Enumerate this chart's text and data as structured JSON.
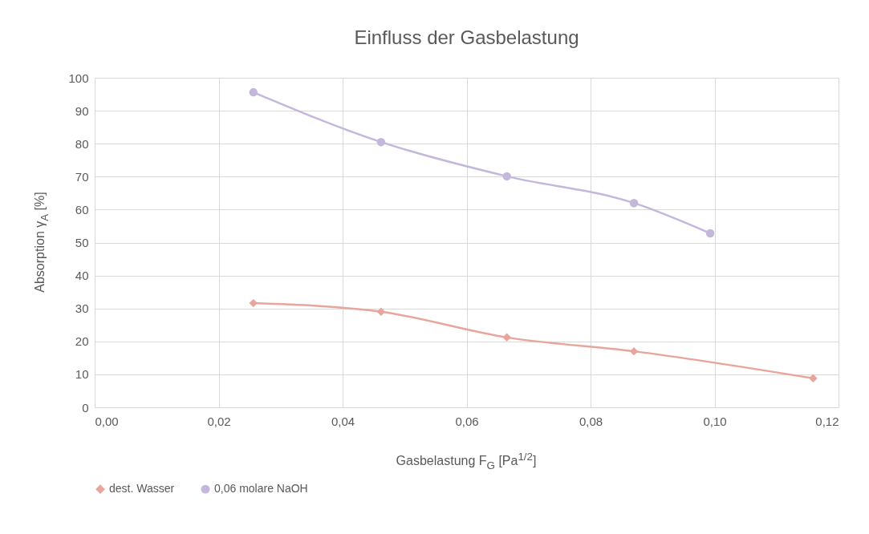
{
  "chart_data": {
    "type": "line",
    "title": "Einfluss der Gasbelastung",
    "xlabel": "Gasbelastung F$_{G}$ [Pa$^{1/2}$]",
    "ylabel": "Absorption γ$_{A}$ [%]",
    "xlim": [
      0,
      0.12
    ],
    "xticks": [
      {
        "value": 0,
        "label": "0,00"
      },
      {
        "value": 0.02,
        "label": "0,02"
      },
      {
        "value": 0.04,
        "label": "0,04"
      },
      {
        "value": 0.06,
        "label": "0,06"
      },
      {
        "value": 0.08,
        "label": "0,08"
      },
      {
        "value": 0.1,
        "label": "0,10"
      },
      {
        "value": 0.12,
        "label": "0,12"
      }
    ],
    "ylim": [
      0,
      100
    ],
    "yticks": [
      0,
      10,
      20,
      30,
      40,
      50,
      60,
      70,
      80,
      90,
      100
    ],
    "grid": true,
    "legend": "bottom",
    "series": [
      {
        "name": "dest. Wasser",
        "color": "#e8a59c",
        "marker": "diamond",
        "x": [
          0.0256,
          0.0462,
          0.0665,
          0.087,
          0.1159
        ],
        "values": [
          31.6,
          29.0,
          21.2,
          17.0,
          8.8
        ]
      },
      {
        "name": "0,06 molare NaOH",
        "color": "#c4b7dc",
        "marker": "circle",
        "x": [
          0.0256,
          0.0462,
          0.0665,
          0.087,
          0.0993
        ],
        "values": [
          95.6,
          80.5,
          70.1,
          62.0,
          52.8
        ]
      }
    ]
  }
}
